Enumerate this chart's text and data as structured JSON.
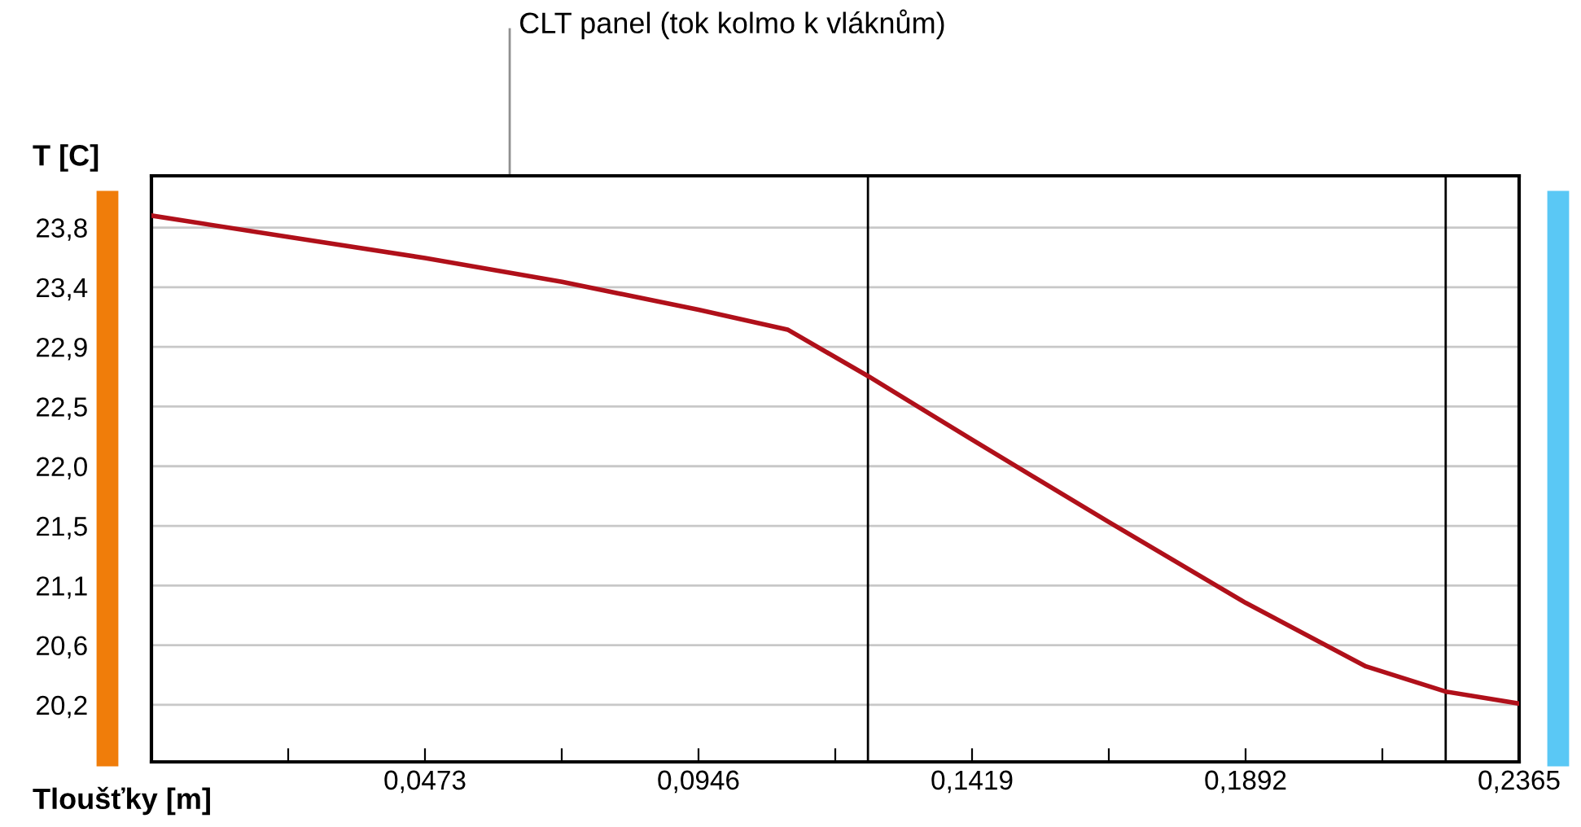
{
  "chart_data": {
    "type": "line",
    "xlabel": "Tloušťky [m]",
    "ylabel": "T [C]",
    "annotations": [
      "CLT panel (tok kolmo k vláknům)"
    ],
    "x": [
      0,
      0.0236,
      0.0473,
      0.071,
      0.0946,
      0.11,
      0.1239,
      0.1419,
      0.1655,
      0.1892,
      0.21,
      0.2238,
      0.2365
    ],
    "series": [
      {
        "color": "#b0101a",
        "values": [
          23.89,
          23.73,
          23.57,
          23.39,
          23.18,
          23.03,
          22.68,
          22.2,
          21.58,
          20.97,
          20.49,
          20.3,
          20.21
        ]
      }
    ],
    "xlim": [
      0,
      0.2365
    ],
    "xticks": [
      {
        "value": 0.02365,
        "label": null
      },
      {
        "value": 0.0473,
        "label": "0,0473"
      },
      {
        "value": 0.07095,
        "label": null
      },
      {
        "value": 0.0946,
        "label": "0,0946"
      },
      {
        "value": 0.11825,
        "label": null
      },
      {
        "value": 0.1419,
        "label": "0,1419"
      },
      {
        "value": 0.16555,
        "label": null
      },
      {
        "value": 0.1892,
        "label": "0,1892"
      },
      {
        "value": 0.21285,
        "label": null
      },
      {
        "value": 0.2365,
        "label": "0,2365"
      }
    ],
    "ylim": [
      19.77,
      24.19
    ],
    "yticks": [
      {
        "value": 20.2,
        "label": "20,2"
      },
      {
        "value": 20.65,
        "label": "20,6"
      },
      {
        "value": 21.1,
        "label": "21,1"
      },
      {
        "value": 21.55,
        "label": "21,5"
      },
      {
        "value": 22.0,
        "label": "22,0"
      },
      {
        "value": 22.45,
        "label": "22,5"
      },
      {
        "value": 22.9,
        "label": "22,9"
      },
      {
        "value": 23.35,
        "label": "23,4"
      },
      {
        "value": 23.8,
        "label": "23,8"
      }
    ],
    "grid": "y",
    "legend": false,
    "marker": "none",
    "line_style": "solid",
    "ref_lines": [
      {
        "axis": "x",
        "value": 0.1239,
        "color": "#000000"
      },
      {
        "axis": "x",
        "value": 0.2238,
        "color": "#000000"
      }
    ]
  }
}
